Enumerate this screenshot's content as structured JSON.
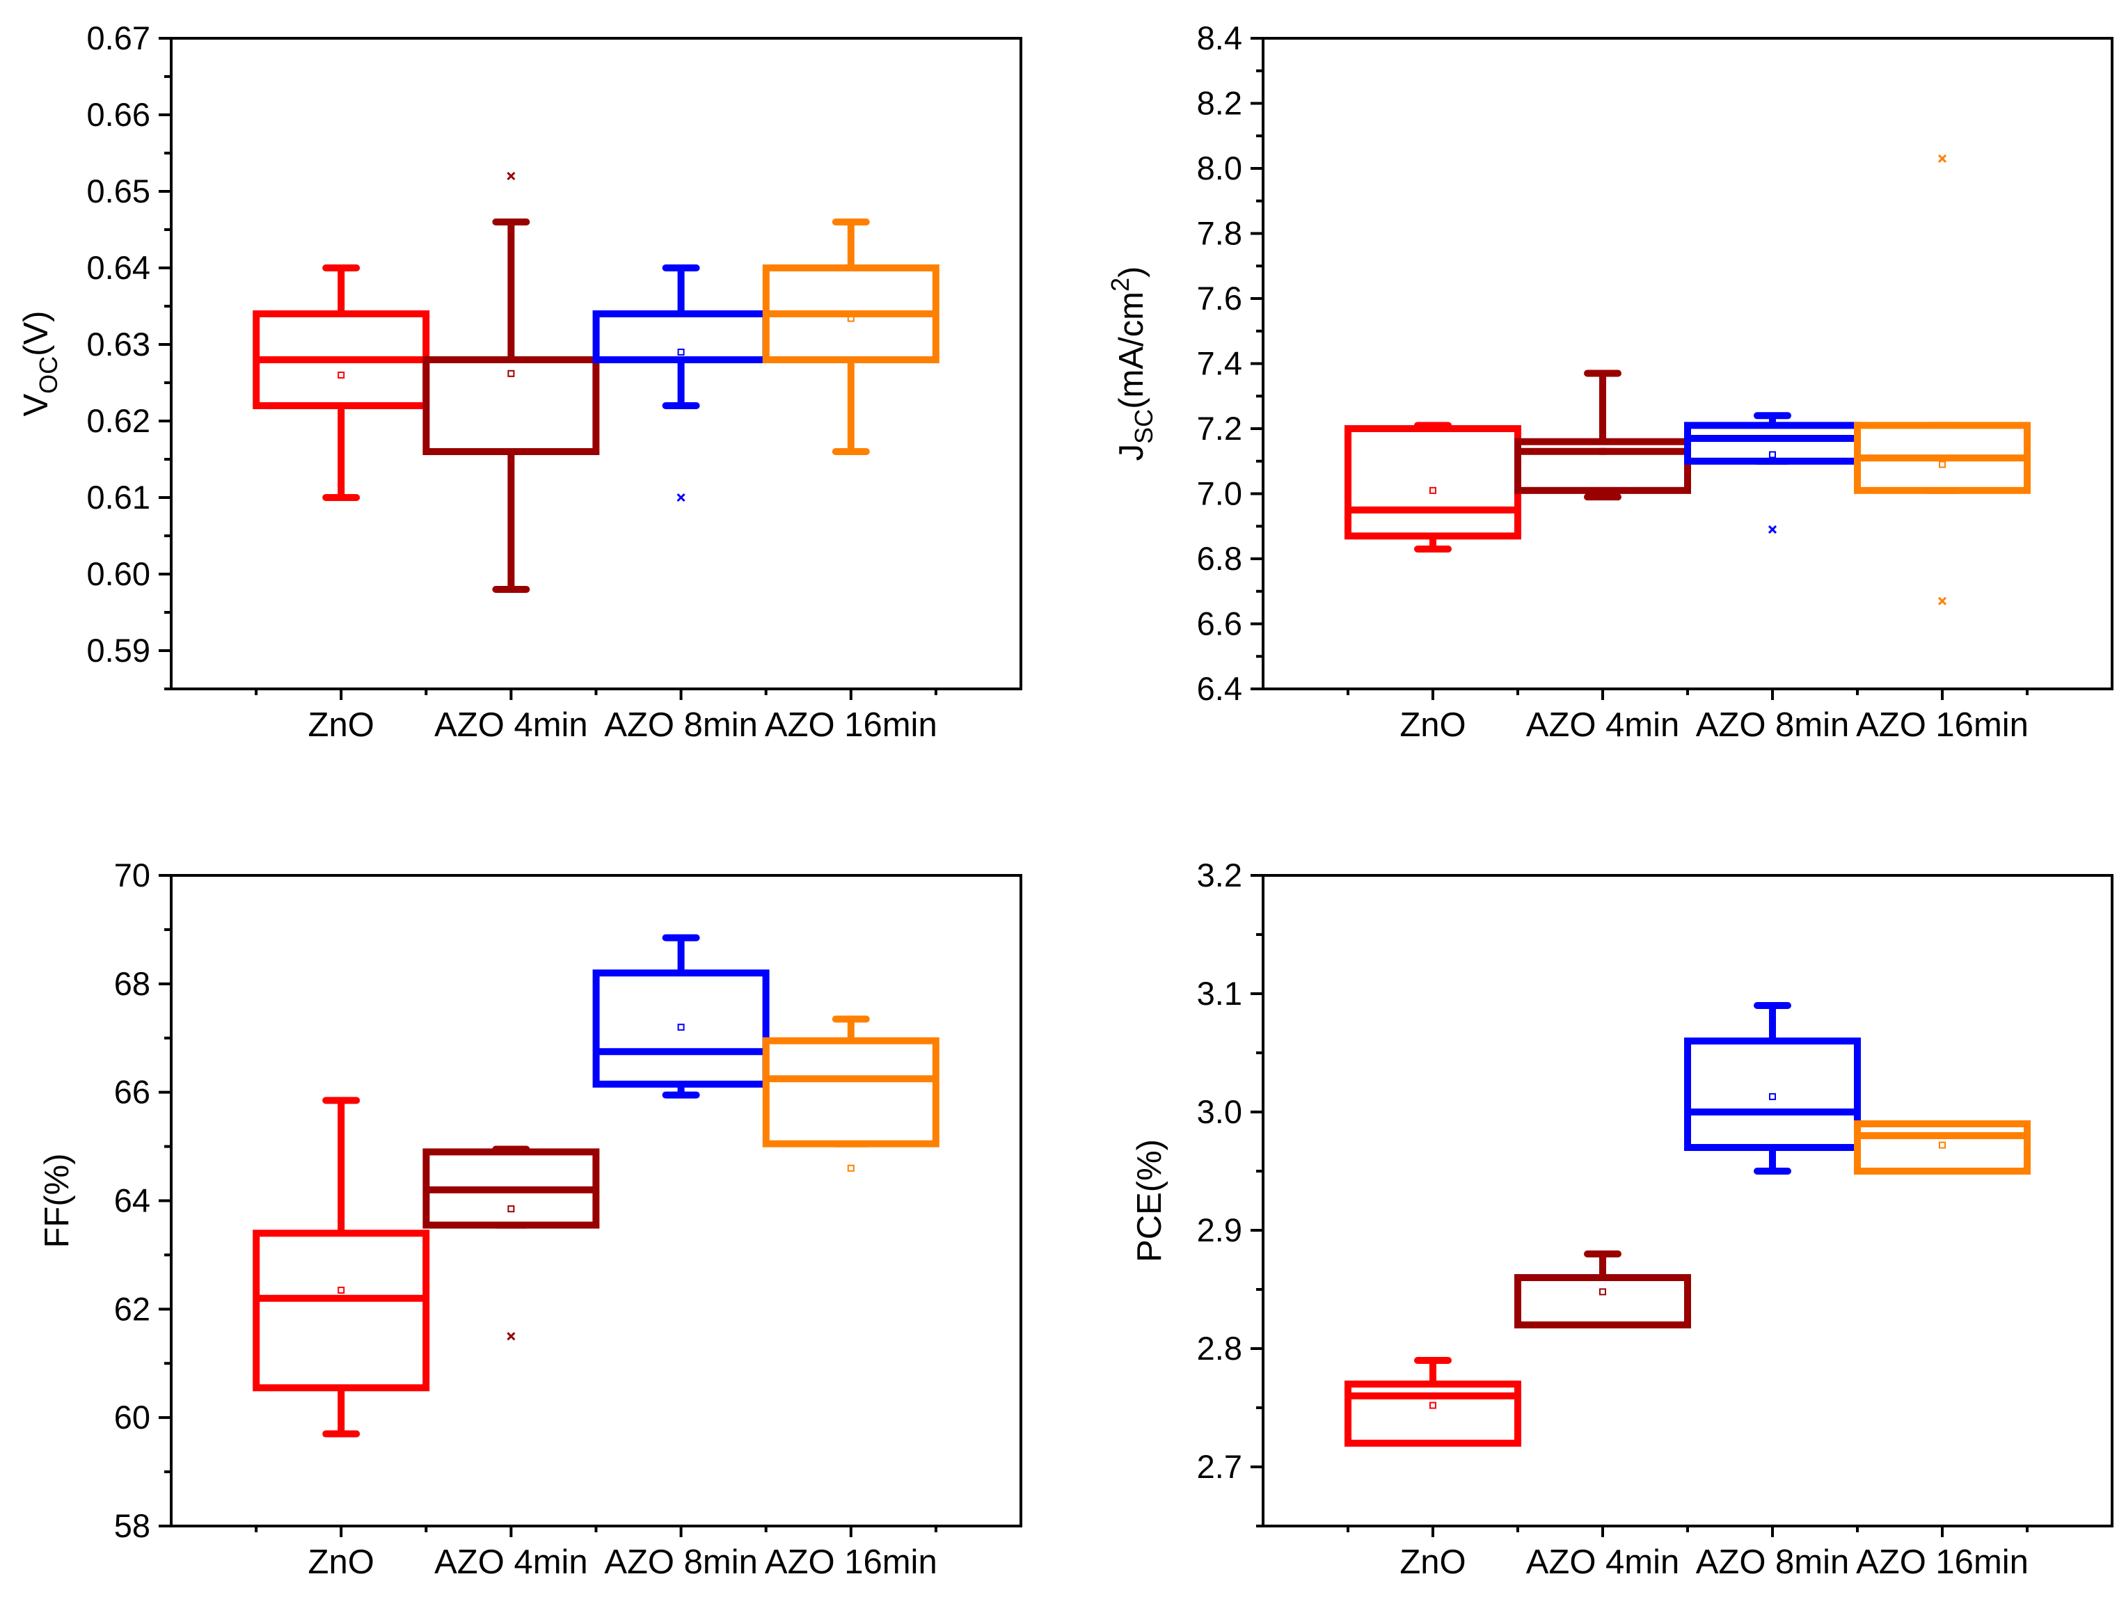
{
  "chart_data": [
    {
      "type": "box",
      "title": "",
      "ylabel": "V_OC(V)",
      "ylabel_main": "V",
      "ylabel_sub": "OC",
      "ylabel_suffix": "(V)",
      "ylabel_sup": "",
      "ylim": [
        0.585,
        0.67
      ],
      "yticks": [
        0.59,
        0.6,
        0.61,
        0.62,
        0.63,
        0.64,
        0.65,
        0.66,
        0.67
      ],
      "ytick_labels": [
        "0.59",
        "0.60",
        "0.61",
        "0.62",
        "0.63",
        "0.64",
        "0.65",
        "0.66",
        "0.67"
      ],
      "categories": [
        "ZnO",
        "AZO 4min",
        "AZO 8min",
        "AZO 16min"
      ],
      "series": [
        {
          "name": "ZnO",
          "color": "#ff0000",
          "whisker_low": 0.61,
          "q1": 0.622,
          "median": 0.628,
          "q3": 0.634,
          "whisker_high": 0.64,
          "mean": 0.626,
          "outliers": []
        },
        {
          "name": "AZO 4min",
          "color": "#990000",
          "whisker_low": 0.598,
          "q1": 0.616,
          "median": 0.628,
          "q3": 0.628,
          "whisker_high": 0.646,
          "mean": 0.6262,
          "outliers": [
            0.652
          ]
        },
        {
          "name": "AZO 8min",
          "color": "#0000ff",
          "whisker_low": 0.622,
          "q1": 0.628,
          "median": 0.634,
          "q3": 0.634,
          "whisker_high": 0.64,
          "mean": 0.629,
          "outliers": [
            0.61
          ]
        },
        {
          "name": "AZO 16min",
          "color": "#ff8000",
          "whisker_low": 0.616,
          "q1": 0.628,
          "median": 0.634,
          "q3": 0.64,
          "whisker_high": 0.646,
          "mean": 0.6334,
          "outliers": []
        }
      ]
    },
    {
      "type": "box",
      "title": "",
      "ylabel": "J_SC(mA/cm^2)",
      "ylabel_main": "J",
      "ylabel_sub": "SC",
      "ylabel_suffix": "(mA/cm",
      "ylabel_sup": "2",
      "ylabel_close": ")",
      "ylim": [
        6.4,
        8.4
      ],
      "yticks": [
        6.4,
        6.6,
        6.8,
        7.0,
        7.2,
        7.4,
        7.6,
        7.8,
        8.0,
        8.2,
        8.4
      ],
      "ytick_labels": [
        "6.4",
        "6.6",
        "6.8",
        "7.0",
        "7.2",
        "7.4",
        "7.6",
        "7.8",
        "8.0",
        "8.2",
        "8.4"
      ],
      "categories": [
        "ZnO",
        "AZO 4min",
        "AZO 8min",
        "AZO 16min"
      ],
      "series": [
        {
          "name": "ZnO",
          "color": "#ff0000",
          "whisker_low": 6.83,
          "q1": 6.87,
          "median": 6.95,
          "q3": 7.2,
          "whisker_high": 7.21,
          "mean": 7.01,
          "outliers": []
        },
        {
          "name": "AZO 4min",
          "color": "#990000",
          "whisker_low": 6.99,
          "q1": 7.01,
          "median": 7.13,
          "q3": 7.16,
          "whisker_high": 7.37,
          "mean": 7.13,
          "outliers": []
        },
        {
          "name": "AZO 8min",
          "color": "#0000ff",
          "whisker_low": 7.1,
          "q1": 7.1,
          "median": 7.17,
          "q3": 7.21,
          "whisker_high": 7.24,
          "mean": 7.12,
          "outliers": [
            6.89
          ]
        },
        {
          "name": "AZO 16min",
          "color": "#ff8000",
          "whisker_low": 7.01,
          "q1": 7.01,
          "median": 7.11,
          "q3": 7.21,
          "whisker_high": 7.21,
          "mean": 7.09,
          "outliers": [
            8.03,
            6.67
          ]
        }
      ]
    },
    {
      "type": "box",
      "title": "",
      "ylabel": "FF(%)",
      "ylabel_main": "FF(%)",
      "ylabel_sub": "",
      "ylabel_suffix": "",
      "ylabel_sup": "",
      "ylim": [
        58,
        70
      ],
      "yticks": [
        58,
        60,
        62,
        64,
        66,
        68,
        70
      ],
      "ytick_labels": [
        "58",
        "60",
        "62",
        "64",
        "66",
        "68",
        "70"
      ],
      "categories": [
        "ZnO",
        "AZO 4min",
        "AZO 8min",
        "AZO 16min"
      ],
      "series": [
        {
          "name": "ZnO",
          "color": "#ff0000",
          "whisker_low": 59.7,
          "q1": 60.55,
          "median": 62.2,
          "q3": 63.4,
          "whisker_high": 65.85,
          "mean": 62.35,
          "outliers": []
        },
        {
          "name": "AZO 4min",
          "color": "#990000",
          "whisker_low": 63.55,
          "q1": 63.55,
          "median": 64.2,
          "q3": 64.9,
          "whisker_high": 64.95,
          "mean": 63.85,
          "outliers": [
            61.5
          ]
        },
        {
          "name": "AZO 8min",
          "color": "#0000ff",
          "whisker_low": 65.95,
          "q1": 66.15,
          "median": 66.75,
          "q3": 68.2,
          "whisker_high": 68.85,
          "mean": 67.2,
          "outliers": []
        },
        {
          "name": "AZO 16min",
          "color": "#ff8000",
          "whisker_low": 65.05,
          "q1": 65.05,
          "median": 66.25,
          "q3": 66.95,
          "whisker_high": 67.35,
          "mean": 64.6,
          "outliers": []
        }
      ]
    },
    {
      "type": "box",
      "title": "",
      "ylabel": "PCE(%)",
      "ylabel_main": "PCE(%)",
      "ylabel_sub": "",
      "ylabel_suffix": "",
      "ylabel_sup": "",
      "ylim": [
        2.65,
        3.2
      ],
      "yticks": [
        2.7,
        2.8,
        2.9,
        3.0,
        3.1,
        3.2
      ],
      "ytick_labels": [
        "2.7",
        "2.8",
        "2.9",
        "3.0",
        "3.1",
        "3.2"
      ],
      "categories": [
        "ZnO",
        "AZO 4min",
        "AZO 8min",
        "AZO 16min"
      ],
      "series": [
        {
          "name": "ZnO",
          "color": "#ff0000",
          "whisker_low": 2.72,
          "q1": 2.72,
          "median": 2.76,
          "q3": 2.77,
          "whisker_high": 2.79,
          "mean": 2.752,
          "outliers": []
        },
        {
          "name": "AZO 4min",
          "color": "#990000",
          "whisker_low": 2.82,
          "q1": 2.82,
          "median": 2.86,
          "q3": 2.86,
          "whisker_high": 2.88,
          "mean": 2.848,
          "outliers": []
        },
        {
          "name": "AZO 8min",
          "color": "#0000ff",
          "whisker_low": 2.95,
          "q1": 2.97,
          "median": 3.0,
          "q3": 3.06,
          "whisker_high": 3.09,
          "mean": 3.013,
          "outliers": []
        },
        {
          "name": "AZO 16min",
          "color": "#ff8000",
          "whisker_low": 2.95,
          "q1": 2.95,
          "median": 2.98,
          "q3": 2.99,
          "whisker_high": 2.99,
          "mean": 2.972,
          "outliers": []
        }
      ]
    }
  ]
}
